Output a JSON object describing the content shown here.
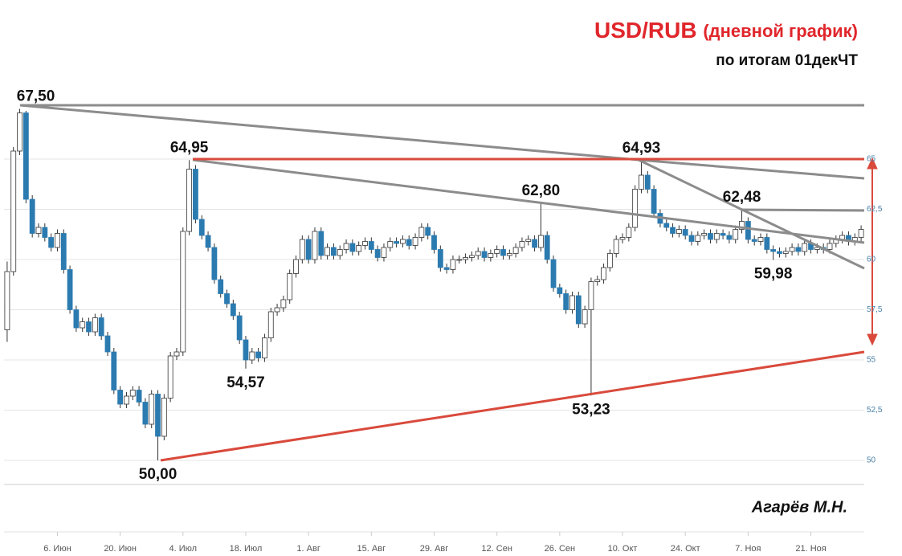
{
  "chart_data": {
    "type": "candlestick",
    "title": "USD/RUB",
    "title_note": "(дневной график)",
    "subtitle": "по итогам 01декЧТ",
    "author": "Агарёв М.Н.",
    "up_color": "#ffffff",
    "down_color": "#2b7bb0",
    "edge_color": "#333333",
    "grid": true,
    "ylim": [
      48.8,
      68.5
    ],
    "yticks": [
      50,
      {
        "value": 52.5,
        "label": "52,5"
      },
      55,
      {
        "value": 57.5,
        "label": "57,5"
      },
      60,
      {
        "value": 62.5,
        "label": "62,5"
      },
      65
    ],
    "categories": [
      null,
      null,
      null,
      null,
      null,
      null,
      null,
      null,
      "6. Июн",
      null,
      null,
      null,
      null,
      null,
      null,
      null,
      null,
      null,
      "20. Июн",
      null,
      null,
      null,
      null,
      null,
      null,
      null,
      null,
      null,
      "4. Июл",
      null,
      null,
      null,
      null,
      null,
      null,
      null,
      null,
      null,
      "18. Июл",
      null,
      null,
      null,
      null,
      null,
      null,
      null,
      null,
      null,
      "1. Авг",
      null,
      null,
      null,
      null,
      null,
      null,
      null,
      null,
      null,
      "15. Авг",
      null,
      null,
      null,
      null,
      null,
      null,
      null,
      null,
      null,
      "29. Авг",
      null,
      null,
      null,
      null,
      null,
      null,
      null,
      null,
      null,
      "12. Сен",
      null,
      null,
      null,
      null,
      null,
      null,
      null,
      null,
      null,
      "26. Сен",
      null,
      null,
      null,
      null,
      null,
      null,
      null,
      null,
      null,
      "10. Окт",
      null,
      null,
      null,
      null,
      null,
      null,
      null,
      null,
      null,
      "24. Окт",
      null,
      null,
      null,
      null,
      null,
      null,
      null,
      null,
      null,
      "7. Ноя",
      null,
      null,
      null,
      null,
      null,
      null,
      null,
      null,
      null,
      "21. Ноя",
      null,
      null,
      null,
      null,
      null,
      null,
      null,
      null
    ],
    "open": [
      56.5,
      59.4,
      65.4,
      67.3,
      63.0,
      61.3,
      61.6,
      61.1,
      60.6,
      61.3,
      59.5,
      57.5,
      56.6,
      56.9,
      56.4,
      57.1,
      56.2,
      55.4,
      53.5,
      52.8,
      53.2,
      53.5,
      52.9,
      51.8,
      53.3,
      51.2,
      53.1,
      55.2,
      55.4,
      61.4,
      64.5,
      62.0,
      61.2,
      60.6,
      59.0,
      58.3,
      57.8,
      57.2,
      56.0,
      55.0,
      55.4,
      55.1,
      56.1,
      57.4,
      57.6,
      58.0,
      59.3,
      60.0,
      61.0,
      60.0,
      61.4,
      60.2,
      60.6,
      60.2,
      60.5,
      60.8,
      60.4,
      60.7,
      60.9,
      60.5,
      60.1,
      60.6,
      60.9,
      60.8,
      61.0,
      60.7,
      61.1,
      61.6,
      61.2,
      60.5,
      59.6,
      59.5,
      60.0,
      60.0,
      60.1,
      60.2,
      60.4,
      60.1,
      60.3,
      60.5,
      60.2,
      60.3,
      60.6,
      60.9,
      61.0,
      60.6,
      61.2,
      60.0,
      58.6,
      58.3,
      57.5,
      58.2,
      56.8,
      57.5,
      58.9,
      59.0,
      59.6,
      60.3,
      61.0,
      61.1,
      61.6,
      63.5,
      64.2,
      63.5,
      62.3,
      61.8,
      61.6,
      61.3,
      61.5,
      61.2,
      60.9,
      61.2,
      61.3,
      61.0,
      61.3,
      61.2,
      61.0,
      61.5,
      61.9,
      61.0,
      60.9,
      61.1,
      60.5,
      60.4,
      60.3,
      60.4,
      60.6,
      60.4,
      60.8,
      60.5,
      60.6,
      60.5,
      60.8,
      61.0,
      61.2,
      60.9,
      61.1
    ],
    "high": [
      59.9,
      65.6,
      67.5,
      67.4,
      63.2,
      61.8,
      61.8,
      61.3,
      61.5,
      61.5,
      59.7,
      57.7,
      57.1,
      57.1,
      57.3,
      57.3,
      56.4,
      55.6,
      53.7,
      53.4,
      53.7,
      53.7,
      53.1,
      53.5,
      53.5,
      53.3,
      55.4,
      55.6,
      61.6,
      64.95,
      64.7,
      62.2,
      61.4,
      60.8,
      59.2,
      58.5,
      58.0,
      57.4,
      56.2,
      55.6,
      55.6,
      56.3,
      57.6,
      57.8,
      58.2,
      59.5,
      60.2,
      61.2,
      61.2,
      61.6,
      61.6,
      60.8,
      60.8,
      60.7,
      61.0,
      61.0,
      60.9,
      61.1,
      61.1,
      60.7,
      60.8,
      61.1,
      61.1,
      61.2,
      61.2,
      61.3,
      61.8,
      61.8,
      61.4,
      60.7,
      59.8,
      60.2,
      60.2,
      60.3,
      60.4,
      60.6,
      60.6,
      60.5,
      60.7,
      60.7,
      60.5,
      60.8,
      61.1,
      61.2,
      61.2,
      62.8,
      61.4,
      60.2,
      58.8,
      58.5,
      58.4,
      58.4,
      57.7,
      59.1,
      59.2,
      59.8,
      60.5,
      61.2,
      61.3,
      61.8,
      63.7,
      64.93,
      64.4,
      63.7,
      62.5,
      62.0,
      61.8,
      61.7,
      61.7,
      61.4,
      61.4,
      61.5,
      61.5,
      61.5,
      61.5,
      61.4,
      61.7,
      62.48,
      62.1,
      61.2,
      61.3,
      61.3,
      60.7,
      60.6,
      60.6,
      60.8,
      60.8,
      61.0,
      61.0,
      60.8,
      60.8,
      61.0,
      61.2,
      61.4,
      61.4,
      61.3,
      61.7
    ],
    "low": [
      55.9,
      59.2,
      65.2,
      62.8,
      61.1,
      61.1,
      60.9,
      60.4,
      60.4,
      59.3,
      57.3,
      56.4,
      56.4,
      56.2,
      56.2,
      56.0,
      55.2,
      53.3,
      52.6,
      52.6,
      53.0,
      52.7,
      51.6,
      51.6,
      50.0,
      51.0,
      52.9,
      55.0,
      55.2,
      61.2,
      61.8,
      61.0,
      60.4,
      58.8,
      58.1,
      57.6,
      57.0,
      55.8,
      54.57,
      54.8,
      54.9,
      54.9,
      55.9,
      57.2,
      57.4,
      57.8,
      59.1,
      59.8,
      59.8,
      59.8,
      60.0,
      60.0,
      60.0,
      60.0,
      60.3,
      60.2,
      60.2,
      60.5,
      60.3,
      59.9,
      59.9,
      60.4,
      60.6,
      60.6,
      60.5,
      60.5,
      60.9,
      61.0,
      60.3,
      59.4,
      59.3,
      59.3,
      59.8,
      59.8,
      59.9,
      60.0,
      59.9,
      59.9,
      60.1,
      60.0,
      60.0,
      60.1,
      60.4,
      60.7,
      60.4,
      60.4,
      59.8,
      58.4,
      58.1,
      57.3,
      57.3,
      56.6,
      56.6,
      53.23,
      58.7,
      58.8,
      59.4,
      60.1,
      60.8,
      60.9,
      61.4,
      63.3,
      63.3,
      62.1,
      61.6,
      61.4,
      61.1,
      61.1,
      61.0,
      60.7,
      60.7,
      61.0,
      60.8,
      60.8,
      61.0,
      60.8,
      60.8,
      61.3,
      60.8,
      60.7,
      60.7,
      60.3,
      59.98,
      60.1,
      60.1,
      60.2,
      60.2,
      60.2,
      60.3,
      60.3,
      60.3,
      60.3,
      60.6,
      60.8,
      60.7,
      60.7,
      60.9
    ],
    "close": [
      59.4,
      65.4,
      67.3,
      63.0,
      61.3,
      61.6,
      61.1,
      60.6,
      61.3,
      59.5,
      57.5,
      56.6,
      56.9,
      56.4,
      57.1,
      56.2,
      55.4,
      53.5,
      52.8,
      53.2,
      53.5,
      52.9,
      51.8,
      53.3,
      51.2,
      53.1,
      55.2,
      55.4,
      61.4,
      64.5,
      62.0,
      61.2,
      60.6,
      59.0,
      58.3,
      57.8,
      57.2,
      56.0,
      55.0,
      55.4,
      55.1,
      56.1,
      57.4,
      57.6,
      58.0,
      59.3,
      60.0,
      61.0,
      60.0,
      61.4,
      60.2,
      60.6,
      60.2,
      60.5,
      60.8,
      60.4,
      60.7,
      60.9,
      60.5,
      60.1,
      60.6,
      60.9,
      60.8,
      61.0,
      60.7,
      61.1,
      61.6,
      61.2,
      60.5,
      59.6,
      59.5,
      60.0,
      60.0,
      60.1,
      60.2,
      60.4,
      60.1,
      60.3,
      60.5,
      60.2,
      60.3,
      60.6,
      60.9,
      61.0,
      60.6,
      61.2,
      60.0,
      58.6,
      58.3,
      57.5,
      58.2,
      56.8,
      57.5,
      58.9,
      59.0,
      59.6,
      60.3,
      61.0,
      61.1,
      61.6,
      63.5,
      64.2,
      63.5,
      62.3,
      61.8,
      61.6,
      61.3,
      61.5,
      61.2,
      60.9,
      61.2,
      61.3,
      61.0,
      61.3,
      61.2,
      61.0,
      61.5,
      61.9,
      61.0,
      60.9,
      61.1,
      60.5,
      60.4,
      60.3,
      60.4,
      60.6,
      60.4,
      60.8,
      60.5,
      60.6,
      60.5,
      60.8,
      61.0,
      61.2,
      60.9,
      61.1,
      61.5
    ],
    "annotations": [
      {
        "text": "67,50",
        "value": 67.5
      },
      {
        "text": "64,95",
        "value": 64.95
      },
      {
        "text": "64,93",
        "value": 64.93
      },
      {
        "text": "62,80",
        "value": 62.8
      },
      {
        "text": "62,48",
        "value": 62.48
      },
      {
        "text": "59,98",
        "value": 59.98
      },
      {
        "text": "54,57",
        "value": 54.57
      },
      {
        "text": "53,23",
        "value": 53.23
      },
      {
        "text": "50,00",
        "value": 50.0
      }
    ]
  }
}
